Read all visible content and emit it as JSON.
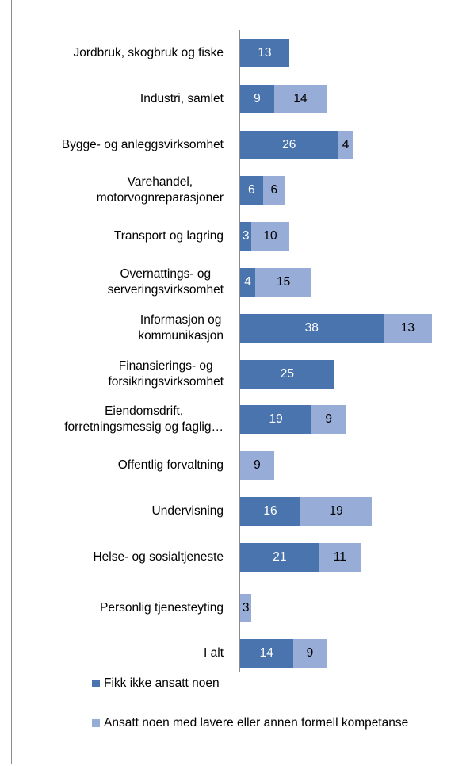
{
  "chart_data": {
    "type": "bar",
    "orientation": "horizontal",
    "stacked": true,
    "categories": [
      "Jordbruk, skogbruk og fiske",
      "Industri, samlet",
      "Bygge- og anleggsvirksomhet",
      "Varehandel,\nmotorvognreparasjoner",
      "Transport og lagring",
      "Overnattings- og\nserveringsvirksomhet",
      "Informasjon og\nkommunikasjon",
      "Finansierings- og\nforsikringsvirksomhet",
      "Eiendomsdrift,\nforretningsmessig og faglig…",
      "Offentlig forvaltning",
      "Undervisning",
      "Helse- og sosialtjeneste",
      "Personlig tjenesteyting",
      "I alt"
    ],
    "series": [
      {
        "name": "Fikk ikke ansatt noen",
        "color": "#4a74ad",
        "label_color": "#ffffff",
        "values": [
          13,
          9,
          26,
          6,
          3,
          4,
          38,
          25,
          19,
          null,
          16,
          21,
          null,
          14
        ]
      },
      {
        "name": "Ansatt noen med lavere eller annen formell kompetanse",
        "color": "#97acd6",
        "label_color": "#000000",
        "values": [
          null,
          14,
          4,
          6,
          10,
          15,
          13,
          null,
          9,
          9,
          19,
          11,
          3,
          9
        ]
      }
    ],
    "legend": "bottom"
  }
}
